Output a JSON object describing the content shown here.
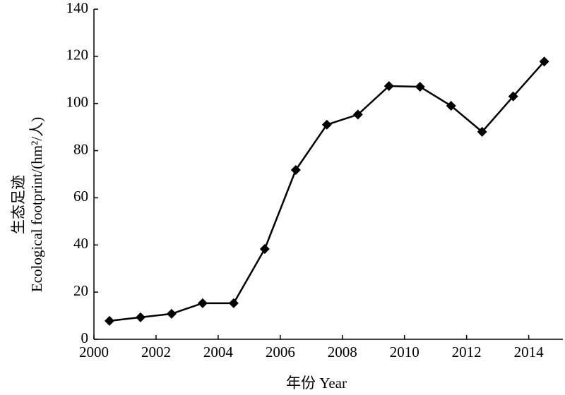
{
  "chart_data": {
    "type": "line",
    "y_label_lines": [
      "生态足迹",
      "Ecological footprint/(hm²/人)"
    ],
    "x_label": "年份 Year",
    "x": [
      2000.5,
      2001.5,
      2002.5,
      2003.5,
      2004.5,
      2005.5,
      2006.5,
      2007.5,
      2008.5,
      2009.5,
      2010.5,
      2011.5,
      2012.5,
      2013.5,
      2014.5
    ],
    "series": [
      {
        "color": "#000000",
        "values": [
          7.8,
          9.3,
          10.8,
          15.3,
          15.3,
          38.3,
          71.8,
          91,
          95.3,
          107.4,
          107.1,
          99,
          88,
          103,
          117.8
        ]
      }
    ],
    "xlim": [
      2000,
      2015.1
    ],
    "xticks": [
      2000,
      2002,
      2004,
      2006,
      2008,
      2010,
      2012,
      2014
    ],
    "ylim": [
      0,
      140
    ],
    "yticks": [
      0,
      20,
      40,
      60,
      80,
      100,
      120,
      140
    ]
  }
}
